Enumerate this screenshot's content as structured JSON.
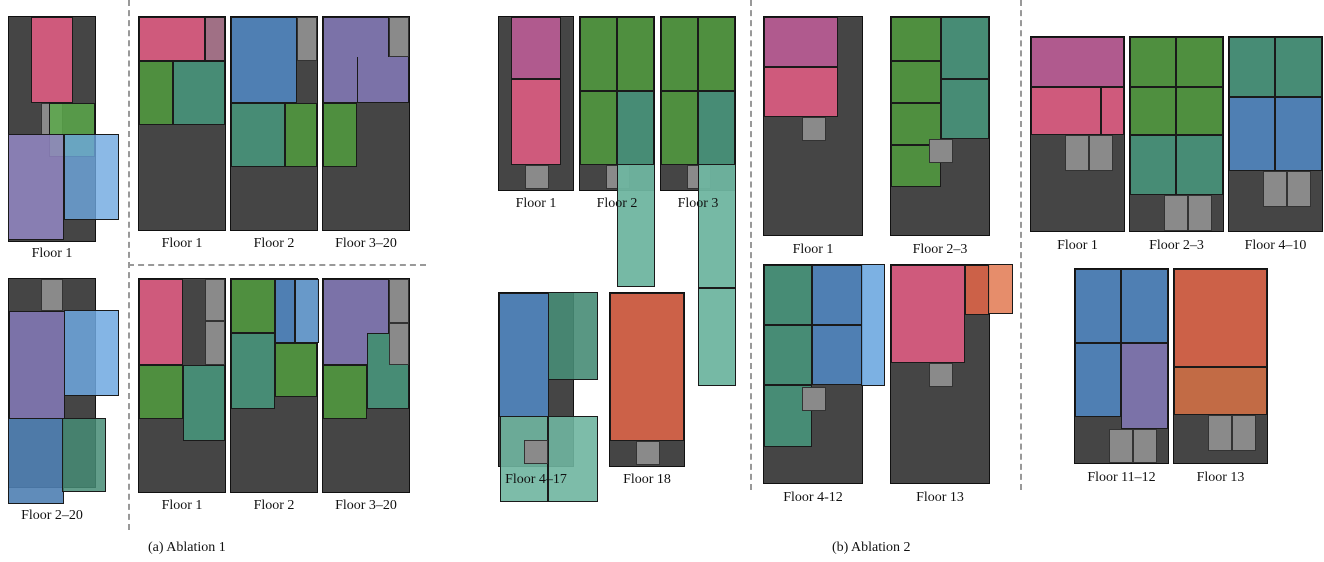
{
  "colors": {
    "base": "#454545",
    "stair": "#8a8a8a",
    "pink": "#cf5a7c",
    "magenta": "#b05a8e",
    "green": "#4f8f3f",
    "teal": "#478c75",
    "blue": "#4f7fb3",
    "purple": "#7b72a8",
    "orange": "#cc6148",
    "light_teal": "#6fb5a0",
    "light_blue": "#6ea8e0",
    "light_green": "#5aa84a",
    "light_purple": "#9488c5",
    "brown_orange": "#c26b45",
    "salmon": "#e58763"
  },
  "ablation1": {
    "caption": "(a) Ablation 1",
    "row1_labels": [
      "Floor 1",
      "Floor 1",
      "Floor 2",
      "Floor 3–20"
    ],
    "row2_labels": [
      "Floor 2–20",
      "Floor 1",
      "Floor 2",
      "Floor 3–20"
    ]
  },
  "ablation2": {
    "caption": "(b) Ablation 2",
    "groupA_labels": [
      "Floor 1",
      "Floor 2",
      "Floor 3",
      "Floor 4–17",
      "Floor 18"
    ],
    "groupB_labels": [
      "Floor 1",
      "Floor 2–3",
      "Floor 4-12",
      "Floor 13"
    ],
    "groupC_labels": [
      "Floor 1",
      "Floor 2–3",
      "Floor 4–10",
      "Floor 11–12",
      "Floor 13"
    ]
  }
}
